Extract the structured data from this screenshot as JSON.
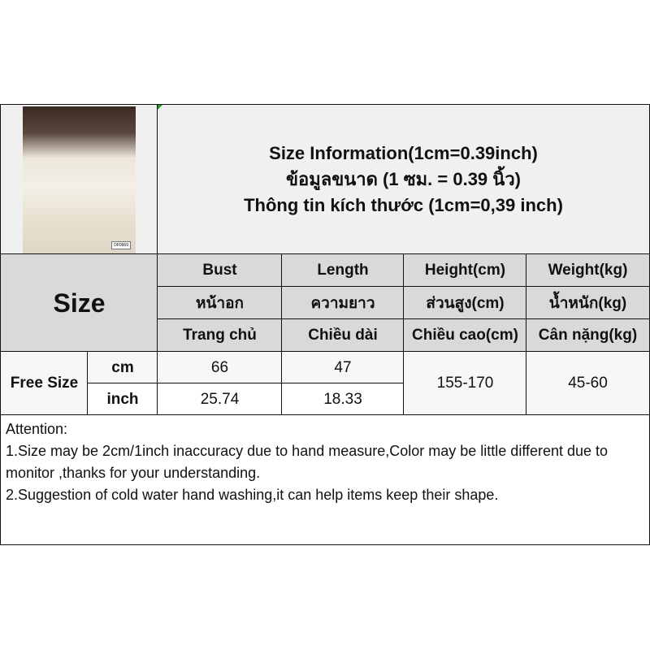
{
  "header": {
    "lines": [
      "Size Information(1cm=0.39inch)",
      "ข้อมูลขนาด (1 ซม. = 0.39 นิ้ว)",
      "Thông tin kích thước (1cm=0,39 inch)"
    ],
    "photo_tag": "DF0969"
  },
  "table": {
    "size_label": "Size",
    "columns": [
      [
        "Bust",
        "หน้าอก",
        "Trang chủ"
      ],
      [
        "Length",
        "ความยาว",
        "Chiều dài"
      ],
      [
        "Height(cm)",
        "ส่วนสูง(cm)",
        "Chiều cao(cm)"
      ],
      [
        "Weight(kg)",
        "น้ำหนัก(kg)",
        "Cân nặng(kg)"
      ]
    ],
    "row_label": "Free Size",
    "units": [
      "cm",
      "inch"
    ],
    "cm": [
      "66",
      "47"
    ],
    "inch": [
      "25.74",
      "18.33"
    ],
    "height": "155-170",
    "weight": "45-60"
  },
  "attention": {
    "title": "Attention:",
    "lines": [
      "1.Size may be 2cm/1inch inaccuracy due to hand measure,Color may be little different due to monitor ,thanks for your understanding.",
      "2.Suggestion of cold water hand washing,it can help items keep their shape."
    ]
  }
}
